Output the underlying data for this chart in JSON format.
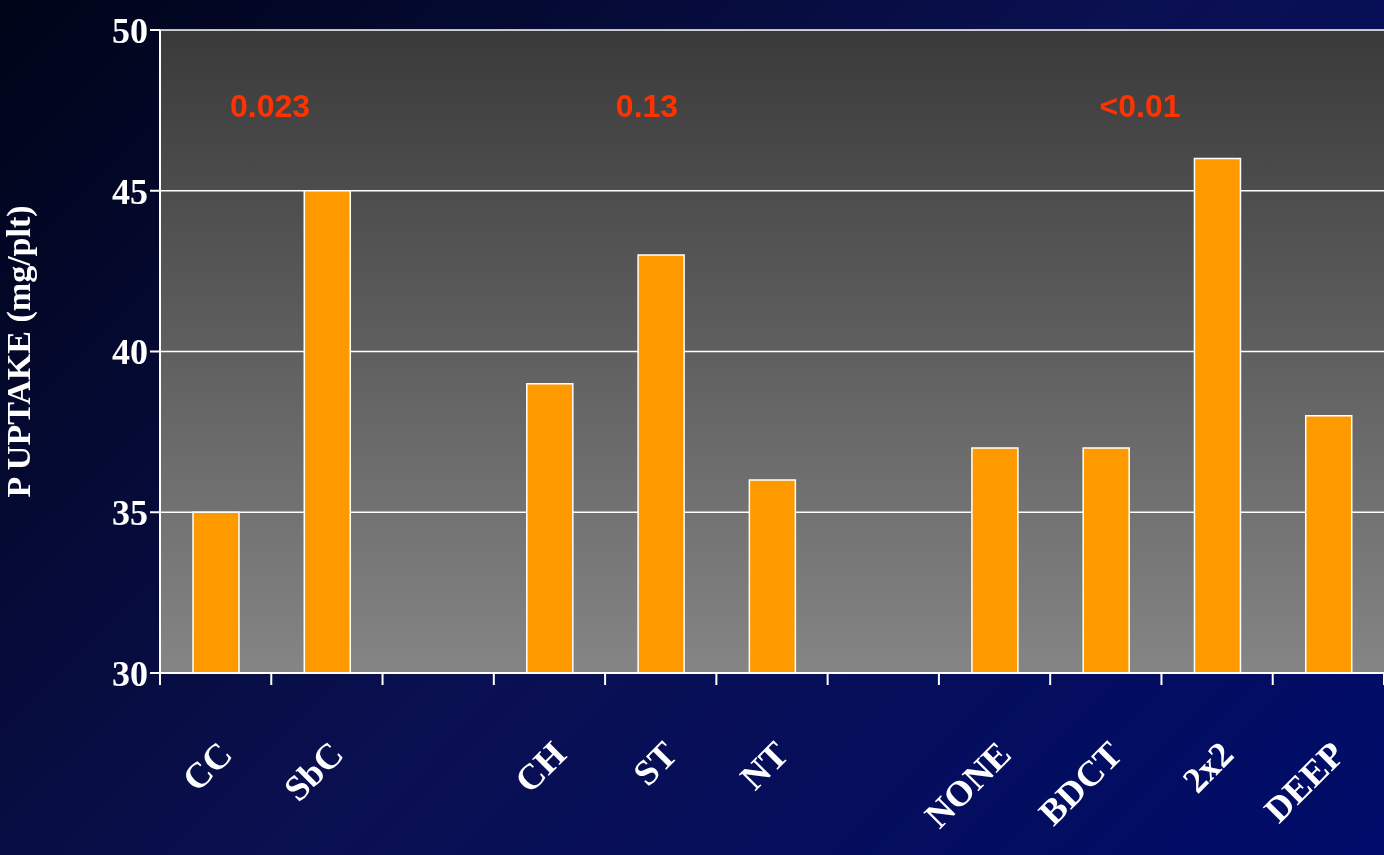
{
  "chart_data": {
    "type": "bar",
    "ylabel": "P UPTAKE (mg/plt)",
    "categories": [
      "CC",
      "SbC",
      null,
      "CH",
      "ST",
      "NT",
      null,
      "NONE",
      "BDCT",
      "2x2",
      "DEEP"
    ],
    "values": [
      35,
      45,
      null,
      39,
      43,
      36,
      null,
      37,
      37,
      46,
      38
    ],
    "color": "#ff9900",
    "ylim": [
      30,
      50
    ],
    "yticks": [
      30,
      35,
      40,
      45,
      50
    ],
    "grid": "y",
    "annotations": [
      "0.023",
      "0.13",
      "<0.01"
    ]
  }
}
